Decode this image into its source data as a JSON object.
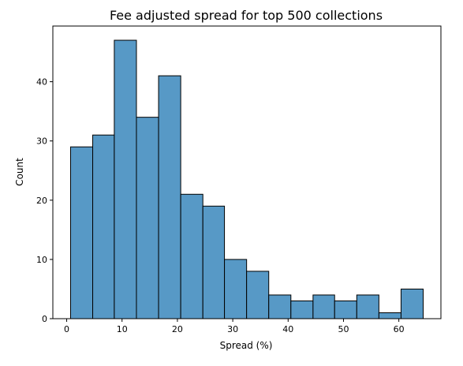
{
  "chart_data": {
    "type": "bar",
    "title": "Fee adjusted spread for top 500 collections",
    "xlabel": "Spread (%)",
    "ylabel": "Count",
    "bin_edges": [
      0.7,
      4.7,
      8.6,
      12.6,
      16.6,
      20.6,
      24.6,
      28.5,
      32.5,
      36.5,
      40.5,
      44.5,
      48.4,
      52.4,
      56.4,
      60.4,
      64.4
    ],
    "values": [
      29,
      31,
      47,
      34,
      41,
      21,
      19,
      10,
      8,
      4,
      3,
      4,
      3,
      4,
      1,
      5
    ],
    "xlim": [
      -2.5,
      67.6
    ],
    "ylim": [
      0,
      49.4
    ],
    "xticks": [
      0,
      10,
      20,
      30,
      40,
      50,
      60
    ],
    "yticks": [
      0,
      10,
      20,
      30,
      40
    ],
    "grid": false,
    "bar_color": "#5799c6",
    "edge_color": "#000000"
  }
}
